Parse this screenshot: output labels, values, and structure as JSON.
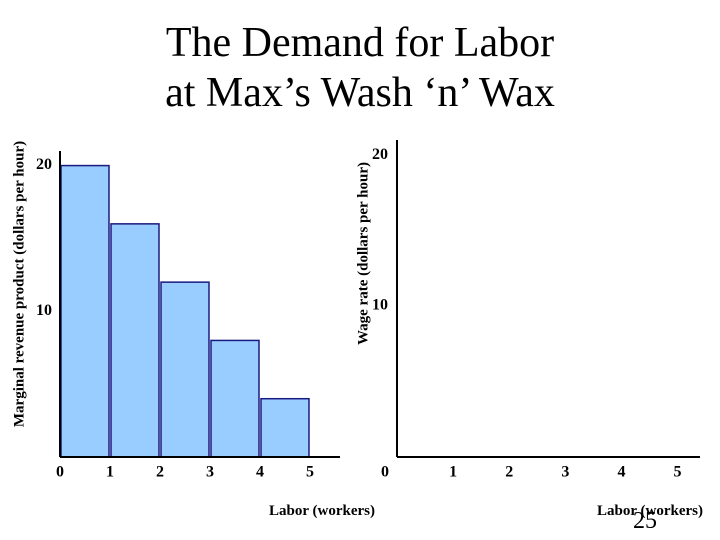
{
  "title": [
    "The Demand for Labor",
    "at Max’s Wash ‘n’ Wax"
  ],
  "slide_number": "25",
  "chart_data": [
    {
      "type": "histogram",
      "bins": [
        0,
        1,
        2,
        3,
        4,
        5
      ],
      "values": [
        20,
        16,
        12,
        8,
        4
      ],
      "color": "#99ccff",
      "edge_color": "#1a1a80",
      "xlabel": "Labor (workers)",
      "ylabel": "Marginal revenue product (dollars per hour)",
      "xlim": [
        0,
        5.6
      ],
      "xticks": [
        0,
        1,
        2,
        3,
        4,
        5
      ],
      "ylim": [
        0,
        21
      ],
      "yticks": [
        10,
        20
      ]
    },
    {
      "type": "line",
      "xlabel": "Labor (workers)",
      "ylabel": "Wage rate (dollars per hour)",
      "xlim": [
        0,
        5.4
      ],
      "xticks": [
        0,
        1,
        2,
        3,
        4,
        5
      ],
      "ylim": [
        0,
        21
      ],
      "yticks": [
        10,
        20
      ]
    }
  ]
}
